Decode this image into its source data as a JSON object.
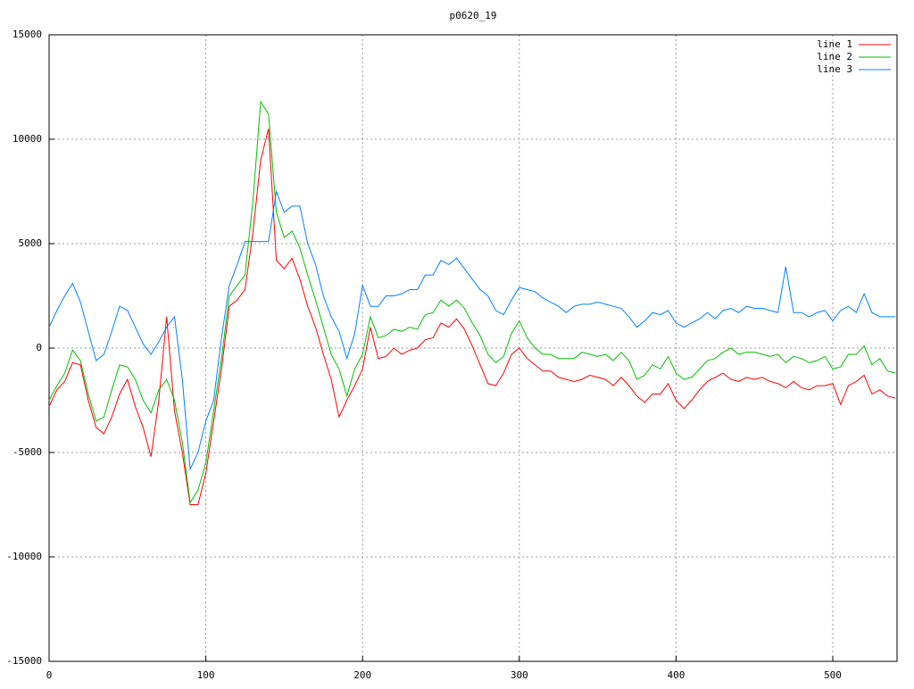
{
  "chart_data": {
    "type": "line",
    "title": "p0620_19",
    "x": [
      0,
      5,
      10,
      15,
      20,
      25,
      30,
      35,
      40,
      45,
      50,
      55,
      60,
      65,
      70,
      75,
      80,
      85,
      90,
      95,
      100,
      105,
      110,
      115,
      120,
      125,
      130,
      135,
      140,
      145,
      150,
      155,
      160,
      165,
      170,
      175,
      180,
      185,
      190,
      195,
      200,
      205,
      210,
      215,
      220,
      225,
      230,
      235,
      240,
      245,
      250,
      255,
      260,
      265,
      270,
      275,
      280,
      285,
      290,
      295,
      300,
      305,
      310,
      315,
      320,
      325,
      330,
      335,
      340,
      345,
      350,
      355,
      360,
      365,
      370,
      375,
      380,
      385,
      390,
      395,
      400,
      405,
      410,
      415,
      420,
      425,
      430,
      435,
      440,
      445,
      450,
      455,
      460,
      465,
      470,
      475,
      480,
      485,
      490,
      495,
      500,
      505,
      510,
      515,
      520,
      525,
      530,
      535,
      540
    ],
    "series": [
      {
        "name": "line 1",
        "color": "#ff0000",
        "values": [
          -2800,
          -2000,
          -1600,
          -700,
          -800,
          -2500,
          -3800,
          -4100,
          -3300,
          -2200,
          -1500,
          -2800,
          -3800,
          -5200,
          -2500,
          1500,
          -3000,
          -5000,
          -7500,
          -7500,
          -6000,
          -3500,
          -1000,
          2000,
          2300,
          2800,
          5500,
          9000,
          10500,
          4200,
          3800,
          4300,
          3300,
          2000,
          1000,
          -300,
          -1500,
          -3300,
          -2500,
          -1800,
          -1000,
          1000,
          -500,
          -400,
          0,
          -300,
          -100,
          0,
          400,
          500,
          1200,
          1000,
          1400,
          900,
          100,
          -800,
          -1700,
          -1800,
          -1200,
          -300,
          0,
          -500,
          -800,
          -1100,
          -1100,
          -1400,
          -1500,
          -1600,
          -1500,
          -1300,
          -1400,
          -1500,
          -1800,
          -1400,
          -1800,
          -2300,
          -2600,
          -2200,
          -2200,
          -1700,
          -2500,
          -2900,
          -2500,
          -2000,
          -1600,
          -1400,
          -1200,
          -1500,
          -1600,
          -1400,
          -1500,
          -1400,
          -1600,
          -1700,
          -1900,
          -1600,
          -1900,
          -2000,
          -1800,
          -1800,
          -1700,
          -2700,
          -1800,
          -1600,
          -1300,
          -2200,
          -2000,
          -2300,
          -2400
        ]
      },
      {
        "name": "line 2",
        "color": "#00c000",
        "values": [
          -2500,
          -1800,
          -1200,
          -100,
          -600,
          -2200,
          -3500,
          -3300,
          -2000,
          -800,
          -900,
          -1500,
          -2500,
          -3100,
          -2000,
          -1500,
          -2500,
          -4500,
          -7400,
          -6800,
          -5500,
          -3000,
          -500,
          2500,
          3000,
          3500,
          7000,
          11800,
          11200,
          6500,
          5300,
          5600,
          4800,
          3500,
          2300,
          1000,
          -300,
          -1000,
          -2300,
          -1000,
          -300,
          1500,
          500,
          600,
          900,
          800,
          1000,
          900,
          1600,
          1700,
          2300,
          2000,
          2300,
          1900,
          1200,
          600,
          -300,
          -700,
          -400,
          700,
          1300,
          500,
          0,
          -300,
          -300,
          -500,
          -500,
          -500,
          -200,
          -300,
          -400,
          -300,
          -600,
          -200,
          -600,
          -1500,
          -1300,
          -800,
          -1000,
          -400,
          -1200,
          -1500,
          -1400,
          -1000,
          -600,
          -500,
          -200,
          0,
          -300,
          -200,
          -200,
          -300,
          -400,
          -300,
          -700,
          -400,
          -500,
          -700,
          -600,
          -400,
          -1000,
          -900,
          -300,
          -300,
          100,
          -800,
          -500,
          -1100,
          -1200
        ]
      },
      {
        "name": "line 3",
        "color": "#0080ff",
        "values": [
          1000,
          1800,
          2500,
          3100,
          2200,
          800,
          -600,
          -300,
          800,
          2000,
          1800,
          1000,
          200,
          -300,
          300,
          1000,
          1500,
          -1500,
          -5800,
          -5000,
          -3500,
          -2500,
          500,
          3000,
          4000,
          5100,
          5100,
          5100,
          5100,
          7500,
          6500,
          6800,
          6800,
          5000,
          4000,
          2500,
          1500,
          800,
          -500,
          700,
          3000,
          2000,
          2000,
          2500,
          2500,
          2600,
          2800,
          2800,
          3500,
          3500,
          4200,
          4000,
          4300,
          3800,
          3300,
          2800,
          2500,
          1800,
          1600,
          2300,
          2900,
          2800,
          2700,
          2400,
          2200,
          2000,
          1700,
          2000,
          2100,
          2100,
          2200,
          2100,
          2000,
          1900,
          1500,
          1000,
          1300,
          1700,
          1600,
          1800,
          1200,
          1000,
          1200,
          1400,
          1700,
          1400,
          1800,
          1900,
          1700,
          2000,
          1900,
          1900,
          1800,
          1700,
          3900,
          1700,
          1700,
          1500,
          1700,
          1800,
          1300,
          1800,
          2000,
          1700,
          2600,
          1700,
          1500,
          1500,
          1500
        ]
      }
    ],
    "xlim": [
      0,
      541
    ],
    "ylim": [
      -15000,
      15000
    ],
    "xticks": [
      0,
      100,
      200,
      300,
      400,
      500
    ],
    "yticks": [
      -15000,
      -10000,
      -5000,
      0,
      5000,
      10000,
      15000
    ],
    "grid": true,
    "legend": "top-right"
  }
}
